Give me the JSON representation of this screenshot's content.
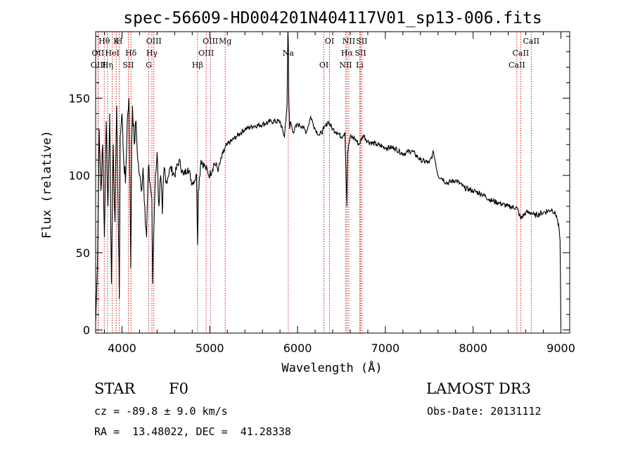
{
  "chart_data": {
    "type": "line",
    "title": "spec-56609-HD004201N404117V01_sp13-006.fits",
    "xlabel": "Wavelength (Å)",
    "ylabel": "Flux (relative)",
    "xlim": [
      3700,
      9100
    ],
    "ylim": [
      -2,
      193
    ],
    "xticks": [
      4000,
      5000,
      6000,
      7000,
      8000,
      9000
    ],
    "yticks": [
      0,
      50,
      100,
      150
    ],
    "grid": false,
    "spectrum": {
      "x": [
        3700,
        3720,
        3740,
        3760,
        3780,
        3800,
        3820,
        3840,
        3860,
        3880,
        3900,
        3920,
        3940,
        3960,
        3970,
        3980,
        4000,
        4020,
        4040,
        4060,
        4080,
        4100,
        4110,
        4120,
        4140,
        4160,
        4180,
        4200,
        4220,
        4240,
        4260,
        4280,
        4300,
        4320,
        4340,
        4350,
        4360,
        4380,
        4400,
        4420,
        4440,
        4460,
        4480,
        4500,
        4550,
        4600,
        4650,
        4700,
        4750,
        4800,
        4850,
        4861,
        4870,
        4900,
        4950,
        5000,
        5050,
        5100,
        5150,
        5200,
        5300,
        5400,
        5500,
        5600,
        5700,
        5800,
        5850,
        5880,
        5890,
        5895,
        5900,
        5910,
        5920,
        5950,
        6000,
        6050,
        6100,
        6150,
        6200,
        6250,
        6300,
        6350,
        6400,
        6450,
        6500,
        6540,
        6555,
        6563,
        6570,
        6600,
        6650,
        6700,
        6750,
        6800,
        6900,
        7000,
        7100,
        7200,
        7300,
        7400,
        7500,
        7550,
        7600,
        7650,
        7700,
        7800,
        7900,
        8000,
        8100,
        8200,
        8300,
        8400,
        8500,
        8542,
        8600,
        8662,
        8700,
        8800,
        8900,
        8950,
        8980,
        8990,
        9000
      ],
      "y": [
        5,
        40,
        130,
        90,
        120,
        60,
        135,
        80,
        140,
        30,
        120,
        70,
        145,
        60,
        20,
        125,
        140,
        110,
        95,
        135,
        150,
        40,
        120,
        145,
        120,
        135,
        110,
        100,
        90,
        105,
        80,
        60,
        105,
        95,
        85,
        30,
        60,
        100,
        115,
        80,
        100,
        75,
        105,
        95,
        105,
        100,
        110,
        100,
        105,
        95,
        100,
        55,
        90,
        110,
        105,
        100,
        108,
        104,
        114,
        120,
        125,
        130,
        132,
        133,
        135,
        135,
        125,
        145,
        193,
        185,
        150,
        130,
        135,
        128,
        133,
        132,
        128,
        138,
        130,
        126,
        130,
        135,
        130,
        128,
        125,
        128,
        95,
        80,
        115,
        125,
        124,
        120,
        126,
        122,
        120,
        118,
        118,
        114,
        116,
        110,
        108,
        115,
        100,
        98,
        95,
        97,
        92,
        90,
        88,
        84,
        82,
        80,
        79,
        72,
        76,
        76,
        74,
        76,
        78,
        74,
        65,
        58,
        2
      ]
    },
    "spectral_lines": [
      {
        "name": "Hθ",
        "x": 3798
      },
      {
        "name": "OII",
        "x": 3727
      },
      {
        "name": "OIII",
        "x": 3730
      },
      {
        "name": "K",
        "x": 3934
      },
      {
        "name": "HeI",
        "x": 3889
      },
      {
        "name": "Hη",
        "x": 3835
      },
      {
        "name": "H",
        "x": 3969
      },
      {
        "name": "Hδ",
        "x": 4102
      },
      {
        "name": "SII",
        "x": 4072
      },
      {
        "name": "OIII",
        "x": 4363
      },
      {
        "name": "Hγ",
        "x": 4341
      },
      {
        "name": "G",
        "x": 4305
      },
      {
        "name": "OIII",
        "x": 5007
      },
      {
        "name": "OIII",
        "x": 4959
      },
      {
        "name": "Hβ",
        "x": 4861
      },
      {
        "name": "Mg",
        "x": 5175
      },
      {
        "name": "Na",
        "x": 5894
      },
      {
        "name": "OI",
        "x": 6300
      },
      {
        "name": "OI",
        "x": 6364
      },
      {
        "name": "Hα",
        "x": 6563
      },
      {
        "name": "NII",
        "x": 6548
      },
      {
        "name": "NII",
        "x": 6584
      },
      {
        "name": "SII",
        "x": 6717
      },
      {
        "name": "Li",
        "x": 6708
      },
      {
        "name": "SII",
        "x": 6731
      },
      {
        "name": "CaII",
        "x": 8542
      },
      {
        "name": "CaII",
        "x": 8498
      },
      {
        "name": "CaII",
        "x": 8662
      }
    ]
  },
  "footer": {
    "object_class": "STAR",
    "subclass": "F0",
    "survey": "LAMOST DR3",
    "cz": "cz = -89.8 ± 9.0 km/s",
    "obs_date": "Obs-Date: 20131112",
    "coords": "RA =  13.48022, DEC =  41.28338"
  }
}
